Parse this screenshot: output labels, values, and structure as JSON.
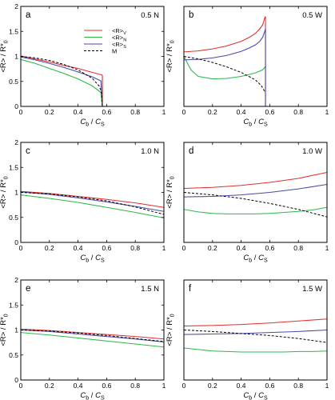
{
  "figure": {
    "xlabel_main": "C",
    "xlabel_sub1": "b",
    "xlabel_sep": " / ",
    "xlabel_main2": "C",
    "xlabel_sub2": "S",
    "ylabel": "<R> / R*",
    "ylabel_sub": "0",
    "legend": [
      {
        "label": "<R>",
        "sub": "V",
        "color": "#e03030",
        "dash": false
      },
      {
        "label": "<R>",
        "sub": "N",
        "color": "#2db84a",
        "dash": false
      },
      {
        "label": "<R>",
        "sub": "S",
        "color": "#4a4aa8",
        "dash": false
      },
      {
        "label": "M",
        "sub": "",
        "color": "#000000",
        "dash": true
      }
    ]
  },
  "chart_data": [
    {
      "type": "line",
      "panel": "a",
      "condition": "0.5 N",
      "xlim": [
        0,
        1
      ],
      "ylim": [
        0,
        2
      ],
      "xticks": [
        0,
        0.2,
        0.4,
        0.6,
        0.8,
        1
      ],
      "xtick_labels": [
        "0",
        "0.2",
        "0.4",
        "0.6",
        "0.8",
        "1"
      ],
      "yticks": [
        0,
        0.5,
        1,
        1.5,
        2
      ],
      "ytick_labels": [
        "0",
        "0.5",
        "1",
        "1.5",
        "2"
      ],
      "series": [
        {
          "name": "<R>V",
          "color": "#e03030",
          "x": [
            0,
            0.1,
            0.2,
            0.3,
            0.4,
            0.5,
            0.565,
            0.57,
            0.57
          ],
          "y": [
            1.01,
            0.95,
            0.89,
            0.82,
            0.76,
            0.68,
            0.63,
            0.62,
            0.0
          ]
        },
        {
          "name": "<R>N",
          "color": "#2db84a",
          "x": [
            0,
            0.1,
            0.2,
            0.3,
            0.4,
            0.5,
            0.56,
            0.565,
            0.57
          ],
          "y": [
            0.94,
            0.86,
            0.76,
            0.66,
            0.55,
            0.41,
            0.28,
            0.12,
            0.0
          ]
        },
        {
          "name": "<R>S",
          "color": "#4a4aa8",
          "x": [
            0,
            0.1,
            0.2,
            0.3,
            0.4,
            0.5,
            0.56,
            0.565,
            0.57
          ],
          "y": [
            0.99,
            0.93,
            0.86,
            0.78,
            0.69,
            0.59,
            0.51,
            0.25,
            0.0
          ]
        },
        {
          "name": "M",
          "color": "#000000",
          "dash": true,
          "x": [
            0,
            0.1,
            0.2,
            0.3,
            0.4,
            0.5,
            0.55,
            0.565,
            0.57
          ],
          "y": [
            1.0,
            0.97,
            0.92,
            0.84,
            0.73,
            0.56,
            0.4,
            0.25,
            0.0
          ]
        }
      ]
    },
    {
      "type": "line",
      "panel": "b",
      "condition": "0.5 W",
      "xlim": [
        0,
        1
      ],
      "ylim": [
        0,
        2
      ],
      "xticks": [
        0,
        0.2,
        0.4,
        0.6,
        0.8,
        1
      ],
      "xtick_labels": [
        "0",
        "0.2",
        "0.4",
        "0.6",
        "0.8",
        "1"
      ],
      "yticks": [],
      "ytick_labels": [],
      "series": [
        {
          "name": "<R>V",
          "color": "#e03030",
          "x": [
            0,
            0.1,
            0.2,
            0.3,
            0.4,
            0.45,
            0.5,
            0.53,
            0.55,
            0.565,
            0.57,
            0.57
          ],
          "y": [
            1.09,
            1.11,
            1.15,
            1.21,
            1.3,
            1.37,
            1.46,
            1.55,
            1.63,
            1.77,
            1.8,
            0.0
          ]
        },
        {
          "name": "<R>N",
          "color": "#2db84a",
          "x": [
            0,
            0.05,
            0.1,
            0.2,
            0.3,
            0.4,
            0.5,
            0.55,
            0.565,
            0.57
          ],
          "y": [
            1.0,
            0.73,
            0.6,
            0.55,
            0.56,
            0.6,
            0.67,
            0.73,
            0.78,
            0.8
          ]
        },
        {
          "name": "<R>S",
          "color": "#4a4aa8",
          "x": [
            0,
            0.1,
            0.2,
            0.3,
            0.4,
            0.45,
            0.5,
            0.53,
            0.55,
            0.565,
            0.57,
            0.57
          ],
          "y": [
            0.93,
            0.94,
            0.97,
            1.02,
            1.1,
            1.16,
            1.23,
            1.3,
            1.38,
            1.5,
            1.55,
            0.0
          ]
        },
        {
          "name": "M",
          "color": "#000000",
          "dash": true,
          "x": [
            0,
            0.1,
            0.2,
            0.3,
            0.4,
            0.5,
            0.54,
            0.56,
            0.57
          ],
          "y": [
            1.0,
            0.95,
            0.88,
            0.79,
            0.68,
            0.53,
            0.42,
            0.32,
            0.28
          ]
        }
      ]
    },
    {
      "type": "line",
      "panel": "c",
      "condition": "1.0 N",
      "xlim": [
        0,
        1
      ],
      "ylim": [
        0,
        2
      ],
      "xticks": [
        0,
        0.2,
        0.4,
        0.6,
        0.8,
        1
      ],
      "xtick_labels": [
        "0",
        "0.2",
        "0.4",
        "0.6",
        "0.8",
        "1"
      ],
      "yticks": [
        0,
        0.5,
        1,
        1.5,
        2
      ],
      "ytick_labels": [
        "0",
        "0.5",
        "1",
        "1.5",
        "2"
      ],
      "series": [
        {
          "name": "<R>V",
          "color": "#e03030",
          "x": [
            0,
            0.2,
            0.4,
            0.6,
            0.8,
            1
          ],
          "y": [
            1.02,
            0.98,
            0.92,
            0.86,
            0.79,
            0.7
          ]
        },
        {
          "name": "<R>N",
          "color": "#2db84a",
          "x": [
            0,
            0.2,
            0.4,
            0.6,
            0.8,
            1
          ],
          "y": [
            0.95,
            0.88,
            0.8,
            0.7,
            0.6,
            0.49
          ]
        },
        {
          "name": "<R>S",
          "color": "#4a4aa8",
          "x": [
            0,
            0.2,
            0.4,
            0.6,
            0.8,
            1
          ],
          "y": [
            1.01,
            0.96,
            0.89,
            0.81,
            0.72,
            0.62
          ]
        },
        {
          "name": "M",
          "color": "#000000",
          "dash": true,
          "x": [
            0,
            0.2,
            0.4,
            0.6,
            0.8,
            1
          ],
          "y": [
            1.0,
            0.97,
            0.91,
            0.83,
            0.71,
            0.56
          ]
        }
      ]
    },
    {
      "type": "line",
      "panel": "d",
      "condition": "1.0 W",
      "xlim": [
        0,
        1
      ],
      "ylim": [
        0,
        2
      ],
      "xticks": [
        0,
        0.2,
        0.4,
        0.6,
        0.8,
        1
      ],
      "xtick_labels": [
        "0",
        "0.2",
        "0.4",
        "0.6",
        "0.8",
        "1"
      ],
      "yticks": [],
      "ytick_labels": [],
      "series": [
        {
          "name": "<R>V",
          "color": "#e03030",
          "x": [
            0,
            0.2,
            0.4,
            0.6,
            0.8,
            1
          ],
          "y": [
            1.08,
            1.1,
            1.14,
            1.2,
            1.28,
            1.4
          ]
        },
        {
          "name": "<R>N",
          "color": "#2db84a",
          "x": [
            0,
            0.1,
            0.2,
            0.3,
            0.4,
            0.5,
            0.6,
            0.7,
            0.8,
            0.9,
            1
          ],
          "y": [
            0.66,
            0.61,
            0.58,
            0.57,
            0.57,
            0.57,
            0.58,
            0.6,
            0.62,
            0.65,
            0.7
          ]
        },
        {
          "name": "<R>S",
          "color": "#4a4aa8",
          "x": [
            0,
            0.2,
            0.4,
            0.6,
            0.8,
            1
          ],
          "y": [
            0.91,
            0.92,
            0.95,
            1.0,
            1.07,
            1.16
          ]
        },
        {
          "name": "M",
          "color": "#000000",
          "dash": true,
          "x": [
            0,
            0.2,
            0.4,
            0.6,
            0.8,
            1
          ],
          "y": [
            1.0,
            0.95,
            0.88,
            0.78,
            0.66,
            0.51
          ]
        }
      ]
    },
    {
      "type": "line",
      "panel": "e",
      "condition": "1.5 N",
      "xlim": [
        0,
        1
      ],
      "ylim": [
        0,
        2
      ],
      "xticks": [
        0,
        0.2,
        0.4,
        0.6,
        0.8,
        1
      ],
      "xtick_labels": [
        "0",
        "0.2",
        "0.4",
        "0.6",
        "0.8",
        "1"
      ],
      "yticks": [
        0,
        0.5,
        1,
        1.5,
        2
      ],
      "ytick_labels": [
        "0",
        "0.5",
        "1",
        "1.5",
        "2"
      ],
      "series": [
        {
          "name": "<R>V",
          "color": "#e03030",
          "x": [
            0,
            0.2,
            0.4,
            0.6,
            0.8,
            1
          ],
          "y": [
            1.02,
            0.99,
            0.95,
            0.91,
            0.87,
            0.82
          ]
        },
        {
          "name": "<R>N",
          "color": "#2db84a",
          "x": [
            0,
            0.2,
            0.4,
            0.6,
            0.8,
            1
          ],
          "y": [
            0.95,
            0.9,
            0.84,
            0.78,
            0.72,
            0.66
          ]
        },
        {
          "name": "<R>S",
          "color": "#4a4aa8",
          "x": [
            0,
            0.2,
            0.4,
            0.6,
            0.8,
            1
          ],
          "y": [
            1.0,
            0.97,
            0.92,
            0.87,
            0.82,
            0.76
          ]
        },
        {
          "name": "M",
          "color": "#000000",
          "dash": true,
          "x": [
            0,
            0.2,
            0.4,
            0.6,
            0.8,
            1
          ],
          "y": [
            1.0,
            0.98,
            0.94,
            0.89,
            0.83,
            0.77
          ]
        }
      ]
    },
    {
      "type": "line",
      "panel": "f",
      "condition": "1.5 W",
      "xlim": [
        0,
        1
      ],
      "ylim": [
        0,
        2
      ],
      "xticks": [
        0,
        0.2,
        0.4,
        0.6,
        0.8,
        1
      ],
      "xtick_labels": [
        "0",
        "0.2",
        "0.4",
        "0.6",
        "0.8",
        "1"
      ],
      "yticks": [],
      "ytick_labels": [],
      "series": [
        {
          "name": "<R>V",
          "color": "#e03030",
          "x": [
            0,
            0.2,
            0.4,
            0.6,
            0.8,
            1
          ],
          "y": [
            1.08,
            1.09,
            1.11,
            1.14,
            1.18,
            1.22
          ]
        },
        {
          "name": "<R>N",
          "color": "#2db84a",
          "x": [
            0,
            0.1,
            0.2,
            0.3,
            0.4,
            0.5,
            0.6,
            0.7,
            0.8,
            0.9,
            1
          ],
          "y": [
            0.64,
            0.61,
            0.58,
            0.57,
            0.56,
            0.56,
            0.56,
            0.56,
            0.57,
            0.57,
            0.58
          ]
        },
        {
          "name": "<R>S",
          "color": "#4a4aa8",
          "x": [
            0,
            0.2,
            0.4,
            0.6,
            0.8,
            1
          ],
          "y": [
            0.91,
            0.92,
            0.93,
            0.95,
            0.97,
            1.0
          ]
        },
        {
          "name": "M",
          "color": "#000000",
          "dash": true,
          "x": [
            0,
            0.2,
            0.4,
            0.6,
            0.8,
            1
          ],
          "y": [
            1.0,
            0.97,
            0.93,
            0.89,
            0.83,
            0.75
          ]
        }
      ]
    }
  ]
}
